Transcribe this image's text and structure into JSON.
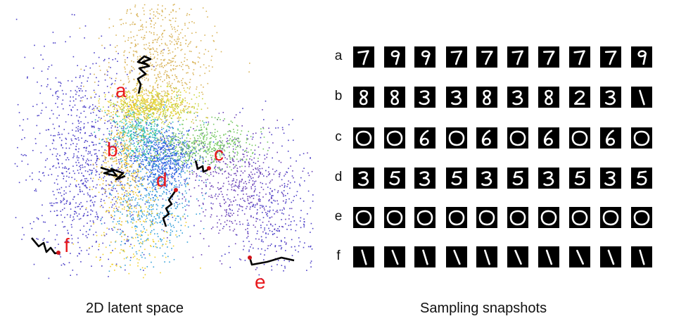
{
  "captions": {
    "latent": "2D latent space",
    "snapshots": "Sampling snapshots"
  },
  "trajectory_labels": [
    "a",
    "b",
    "c",
    "d",
    "e",
    "f"
  ],
  "label_color": "#e8181c",
  "trajectory_color": "#000000",
  "endpoint_color": "#d0141a",
  "cluster_colors": [
    "#4b3fc7",
    "#2f5fe0",
    "#35a0d8",
    "#2fc0b0",
    "#74c860",
    "#c9d43a",
    "#f0d02a",
    "#e7b83a",
    "#d9b45a",
    "#6a3fb5"
  ],
  "snapshots": {
    "row_labels": [
      "a",
      "b",
      "c",
      "d",
      "e",
      "f"
    ],
    "digits": [
      [
        "7",
        "9",
        "9",
        "7",
        "7",
        "7",
        "7",
        "7",
        "7",
        "9"
      ],
      [
        "8",
        "8",
        "3",
        "3",
        "8",
        "3",
        "8",
        "2",
        "3",
        "1"
      ],
      [
        "0",
        "0",
        "6",
        "0",
        "6",
        "0",
        "6",
        "0",
        "6",
        "0"
      ],
      [
        "3",
        "5",
        "3",
        "5",
        "3",
        "5",
        "3",
        "5",
        "3",
        "5"
      ],
      [
        "0",
        "0",
        "0",
        "0",
        "0",
        "0",
        "0",
        "0",
        "0",
        "0"
      ],
      [
        "1",
        "1",
        "1",
        "1",
        "1",
        "1",
        "1",
        "1",
        "1",
        "1"
      ]
    ]
  }
}
